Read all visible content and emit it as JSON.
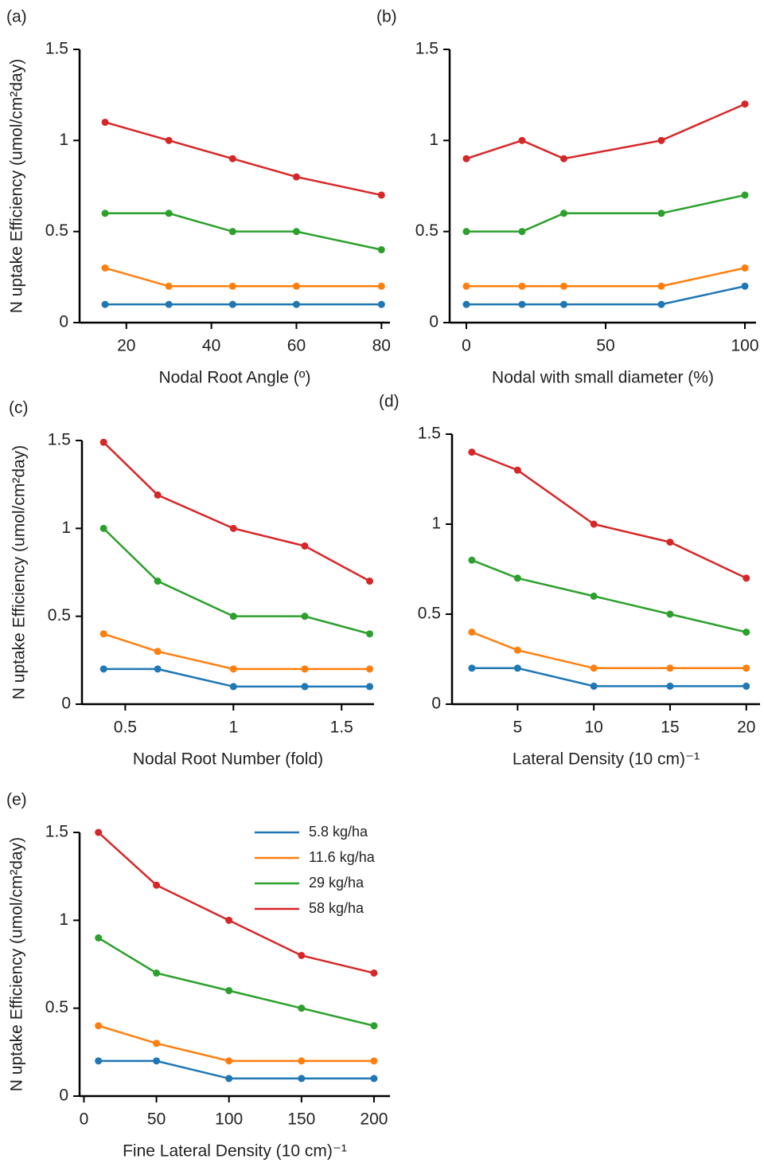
{
  "chart_data": [
    {
      "type": "line",
      "panel_label": "(a)",
      "xlabel": "Nodal Root Angle (º)",
      "ylabel": "N uptake Efficiency (umol/cm²day)",
      "x": [
        15,
        30,
        45,
        60,
        80
      ],
      "xlim": [
        9,
        82
      ],
      "xticks": [
        20,
        40,
        60,
        80
      ],
      "ylim": [
        0,
        1.5
      ],
      "yticks": [
        0,
        0.5,
        1,
        1.5
      ],
      "series": [
        {
          "color": "#1f77b4",
          "values": [
            0.1,
            0.1,
            0.1,
            0.1,
            0.1
          ]
        },
        {
          "color": "#ff7f0e",
          "values": [
            0.3,
            0.2,
            0.2,
            0.2,
            0.2
          ]
        },
        {
          "color": "#2ca02c",
          "values": [
            0.6,
            0.6,
            0.5,
            0.5,
            0.4
          ]
        },
        {
          "color": "#d62728",
          "values": [
            1.1,
            1.0,
            0.9,
            0.8,
            0.7
          ]
        }
      ]
    },
    {
      "type": "line",
      "panel_label": "(b)",
      "xlabel": "Nodal with small diameter (%)",
      "x": [
        0,
        20,
        35,
        70,
        100
      ],
      "xlim": [
        -6,
        104
      ],
      "xticks": [
        0,
        50,
        100
      ],
      "ylim": [
        0,
        1.5
      ],
      "yticks": [
        0,
        0.5,
        1,
        1.5
      ],
      "series": [
        {
          "color": "#1f77b4",
          "values": [
            0.1,
            0.1,
            0.1,
            0.1,
            0.2
          ]
        },
        {
          "color": "#ff7f0e",
          "values": [
            0.2,
            0.2,
            0.2,
            0.2,
            0.3
          ]
        },
        {
          "color": "#2ca02c",
          "values": [
            0.5,
            0.5,
            0.6,
            0.6,
            0.7
          ]
        },
        {
          "color": "#d62728",
          "values": [
            0.9,
            1.0,
            0.9,
            1.0,
            1.2
          ]
        }
      ]
    },
    {
      "type": "line",
      "panel_label": "(c)",
      "xlabel": "Nodal Root Number (fold)",
      "ylabel": "N uptake Efficiency (umol/cm²day)",
      "x": [
        0.4,
        0.65,
        1,
        1.33,
        1.63
      ],
      "xlim": [
        0.3,
        1.65
      ],
      "xticks": [
        0.5,
        1,
        1.5
      ],
      "ylim": [
        0,
        1.5
      ],
      "yticks": [
        0,
        0.5,
        1,
        1.5
      ],
      "series": [
        {
          "color": "#1f77b4",
          "values": [
            0.2,
            0.2,
            0.1,
            0.1,
            0.1
          ]
        },
        {
          "color": "#ff7f0e",
          "values": [
            0.4,
            0.3,
            0.2,
            0.2,
            0.2
          ]
        },
        {
          "color": "#2ca02c",
          "values": [
            1.0,
            0.7,
            0.5,
            0.5,
            0.4
          ]
        },
        {
          "color": "#d62728",
          "values": [
            1.49,
            1.19,
            1.0,
            0.9,
            0.7
          ]
        }
      ]
    },
    {
      "type": "line",
      "panel_label": "(d)",
      "xlabel": "Lateral Density (10 cm)⁻¹",
      "x": [
        2,
        5,
        10,
        15,
        20
      ],
      "xlim": [
        0.7,
        20.9
      ],
      "xticks": [
        5,
        10,
        15,
        20
      ],
      "ylim": [
        0,
        1.5
      ],
      "yticks": [
        0,
        0.5,
        1,
        1.5
      ],
      "series": [
        {
          "color": "#1f77b4",
          "values": [
            0.2,
            0.2,
            0.1,
            0.1,
            0.1
          ]
        },
        {
          "color": "#ff7f0e",
          "values": [
            0.4,
            0.3,
            0.2,
            0.2,
            0.2
          ]
        },
        {
          "color": "#2ca02c",
          "values": [
            0.8,
            0.7,
            0.6,
            0.5,
            0.4
          ]
        },
        {
          "color": "#d62728",
          "values": [
            1.4,
            1.3,
            1.0,
            0.9,
            0.7
          ]
        }
      ]
    },
    {
      "type": "line",
      "panel_label": "(e)",
      "xlabel": "Fine Lateral Density (10 cm)⁻¹",
      "ylabel": "N uptake Efficiency (umol/cm²day)",
      "x": [
        10,
        50,
        100,
        150,
        200
      ],
      "xlim": [
        -3,
        211
      ],
      "xticks": [
        0,
        50,
        100,
        150,
        200
      ],
      "ylim": [
        0,
        1.5
      ],
      "yticks": [
        0,
        0.5,
        1,
        1.5
      ],
      "legend": "upper right",
      "series": [
        {
          "name": "5.8 kg/ha",
          "color": "#1f77b4",
          "values": [
            0.2,
            0.2,
            0.1,
            0.1,
            0.1
          ]
        },
        {
          "name": "11.6 kg/ha",
          "color": "#ff7f0e",
          "values": [
            0.4,
            0.3,
            0.2,
            0.2,
            0.2
          ]
        },
        {
          "name": "29 kg/ha",
          "color": "#2ca02c",
          "values": [
            0.9,
            0.7,
            0.6,
            0.5,
            0.4
          ]
        },
        {
          "name": "58 kg/ha",
          "color": "#d62728",
          "values": [
            1.5,
            1.2,
            1.0,
            0.8,
            0.7
          ]
        }
      ]
    }
  ]
}
